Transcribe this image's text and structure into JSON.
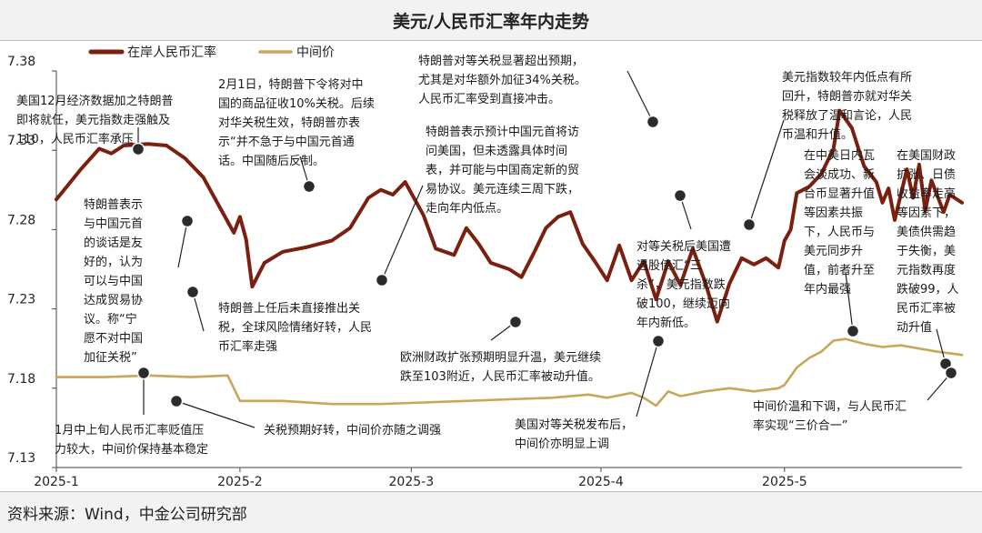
{
  "chart_data": {
    "type": "line",
    "title": "美元/人民币汇率年内走势",
    "x_ticks": [
      "2025-1",
      "2025-2",
      "2025-3",
      "2025-4",
      "2025-5"
    ],
    "xlim": [
      "2025-01-02",
      "2025-05-30"
    ],
    "y_ticks": [
      "7.13",
      "7.18",
      "7.23",
      "7.28",
      "7.33",
      "7.38"
    ],
    "ylim": [
      7.13,
      7.38
    ],
    "grid": false,
    "legend_position": "top-left",
    "series": [
      {
        "name": "在岸人民币汇率",
        "color": "#7b1f0f",
        "points": [
          [
            "2025-01-02",
            7.299
          ],
          [
            "2025-01-06",
            7.318
          ],
          [
            "2025-01-09",
            7.331
          ],
          [
            "2025-01-11",
            7.328
          ],
          [
            "2025-01-13",
            7.333
          ],
          [
            "2025-01-17",
            7.334
          ],
          [
            "2025-01-20",
            7.333
          ],
          [
            "2025-01-23",
            7.325
          ],
          [
            "2025-01-26",
            7.313
          ],
          [
            "2025-01-29",
            7.292
          ],
          [
            "2025-01-31",
            7.278
          ],
          [
            "2025-02-01",
            7.288
          ],
          [
            "2025-02-02",
            7.274
          ],
          [
            "2025-02-03",
            7.244
          ],
          [
            "2025-02-05",
            7.259
          ],
          [
            "2025-02-08",
            7.266
          ],
          [
            "2025-02-12",
            7.269
          ],
          [
            "2025-02-16",
            7.273
          ],
          [
            "2025-02-19",
            7.281
          ],
          [
            "2025-02-22",
            7.3
          ],
          [
            "2025-02-24",
            7.305
          ],
          [
            "2025-02-26",
            7.302
          ],
          [
            "2025-02-28",
            7.31
          ],
          [
            "2025-03-03",
            7.289
          ],
          [
            "2025-03-05",
            7.268
          ],
          [
            "2025-03-08",
            7.264
          ],
          [
            "2025-03-10",
            7.281
          ],
          [
            "2025-03-12",
            7.271
          ],
          [
            "2025-03-14",
            7.259
          ],
          [
            "2025-03-17",
            7.255
          ],
          [
            "2025-03-19",
            7.25
          ],
          [
            "2025-03-21",
            7.265
          ],
          [
            "2025-03-23",
            7.281
          ],
          [
            "2025-03-25",
            7.288
          ],
          [
            "2025-03-27",
            7.291
          ],
          [
            "2025-03-29",
            7.271
          ],
          [
            "2025-03-31",
            7.26
          ],
          [
            "2025-04-02",
            7.248
          ],
          [
            "2025-04-04",
            7.27
          ],
          [
            "2025-04-06",
            7.248
          ],
          [
            "2025-04-08",
            7.26
          ],
          [
            "2025-04-10",
            7.236
          ],
          [
            "2025-04-12",
            7.26
          ],
          [
            "2025-04-14",
            7.245
          ],
          [
            "2025-04-16",
            7.268
          ],
          [
            "2025-04-18",
            7.247
          ],
          [
            "2025-04-20",
            7.222
          ],
          [
            "2025-04-22",
            7.246
          ],
          [
            "2025-04-24",
            7.262
          ],
          [
            "2025-04-26",
            7.258
          ],
          [
            "2025-04-28",
            7.262
          ],
          [
            "2025-04-30",
            7.256
          ],
          [
            "2025-05-01",
            7.273
          ],
          [
            "2025-05-02",
            7.28
          ],
          [
            "2025-05-03",
            7.303
          ],
          [
            "2025-05-05",
            7.307
          ],
          [
            "2025-05-07",
            7.315
          ],
          [
            "2025-05-09",
            7.331
          ],
          [
            "2025-05-10",
            7.355
          ],
          [
            "2025-05-12",
            7.344
          ],
          [
            "2025-05-14",
            7.32
          ],
          [
            "2025-05-16",
            7.31
          ],
          [
            "2025-05-17",
            7.297
          ],
          [
            "2025-05-18",
            7.306
          ],
          [
            "2025-05-19",
            7.286
          ],
          [
            "2025-05-21",
            7.318
          ],
          [
            "2025-05-22",
            7.3
          ],
          [
            "2025-05-23",
            7.321
          ],
          [
            "2025-05-24",
            7.292
          ],
          [
            "2025-05-25",
            7.311
          ],
          [
            "2025-05-27",
            7.291
          ],
          [
            "2025-05-28",
            7.302
          ],
          [
            "2025-05-30",
            7.297
          ]
        ]
      },
      {
        "name": "中间价",
        "color": "#c9a65a",
        "points": [
          [
            "2025-01-02",
            7.187
          ],
          [
            "2025-01-10",
            7.187
          ],
          [
            "2025-01-17",
            7.188
          ],
          [
            "2025-01-24",
            7.187
          ],
          [
            "2025-01-30",
            7.188
          ],
          [
            "2025-02-01",
            7.172
          ],
          [
            "2025-02-08",
            7.172
          ],
          [
            "2025-02-16",
            7.17
          ],
          [
            "2025-02-24",
            7.17
          ],
          [
            "2025-03-03",
            7.171
          ],
          [
            "2025-03-10",
            7.172
          ],
          [
            "2025-03-17",
            7.173
          ],
          [
            "2025-03-24",
            7.174
          ],
          [
            "2025-03-30",
            7.176
          ],
          [
            "2025-04-02",
            7.174
          ],
          [
            "2025-04-06",
            7.177
          ],
          [
            "2025-04-08",
            7.174
          ],
          [
            "2025-04-10",
            7.169
          ],
          [
            "2025-04-12",
            7.178
          ],
          [
            "2025-04-14",
            7.175
          ],
          [
            "2025-04-18",
            7.178
          ],
          [
            "2025-04-22",
            7.18
          ],
          [
            "2025-04-26",
            7.178
          ],
          [
            "2025-04-30",
            7.18
          ],
          [
            "2025-05-01",
            7.182
          ],
          [
            "2025-05-03",
            7.193
          ],
          [
            "2025-05-05",
            7.199
          ],
          [
            "2025-05-07",
            7.203
          ],
          [
            "2025-05-09",
            7.21
          ],
          [
            "2025-05-11",
            7.211
          ],
          [
            "2025-05-14",
            7.208
          ],
          [
            "2025-05-17",
            7.206
          ],
          [
            "2025-05-20",
            7.207
          ],
          [
            "2025-05-23",
            7.205
          ],
          [
            "2025-05-26",
            7.203
          ],
          [
            "2025-05-30",
            7.201
          ]
        ]
      }
    ],
    "annotations": [
      {
        "lines": [
          "美国12月经济数据加之特朗普",
          "即将就任，美元指数走强触及",
          "110，人民币汇率承压"
        ]
      },
      {
        "lines": [
          "2月1日，特朗普下令将对中",
          "国的商品征收10%关税。后续",
          "对华关税生效，特朗普亦表",
          "示“并不急于与中国元首通",
          "话。中国随后反制。"
        ]
      },
      {
        "lines": [
          "特朗普对等关税显著超出预期，",
          "尤其是对华额外加征34%关税。",
          "人民币汇率受到直接冲击。"
        ]
      },
      {
        "lines": [
          "美元指数较年内低点有所",
          "回升，特朗普亦就对华关",
          "税释放了温和言论，人民",
          "币温和升值。"
        ]
      },
      {
        "lines": [
          "特朗普表示预计中国元首将访",
          "问美国，但未透露具体时间",
          "表，并可能与中国商定新的贸",
          "易协议。美元连续三周下跌，",
          "走向年内低点。"
        ]
      },
      {
        "lines": [
          "特朗普表示",
          "与中国元首",
          "的谈话是友",
          "好的，认为",
          "可以与中国",
          "达成贸易协",
          "议。称“宁",
          "愿不对中国",
          "加征关税”"
        ]
      },
      {
        "lines": [
          "在中美日内瓦",
          "会谈成功、新",
          "台币显著升值",
          "等因素共振",
          "下，人民币与",
          "美元同步升",
          "值，前者升至",
          "年内最强"
        ]
      },
      {
        "lines": [
          "在美国财政",
          "扩张、日债",
          "收益率走高",
          "等因素下，",
          "美债供需趋",
          "于失衡，美",
          "元指数再度",
          "跌破99，人",
          "民币汇率被",
          "动升值"
        ]
      },
      {
        "lines": [
          "对等关税后美国遭",
          "遇股债汇“三",
          "杀”，美元指数跌",
          "破100，继续迈向",
          "年内新低。"
        ]
      },
      {
        "lines": [
          "特朗普上任后未直接推出关",
          "税，全球风险情绪好转，人民",
          "币汇率走强"
        ]
      },
      {
        "lines": [
          "欧洲财政扩张预期明显升温，美元继续",
          "跌至103附近，人民币汇率被动升值。"
        ]
      },
      {
        "lines": [
          "1月中上旬人民币汇率贬值压",
          "力较大，中间价保持基本稳定"
        ]
      },
      {
        "lines": [
          "关税预期好转，中间价亦随之调强"
        ]
      },
      {
        "lines": [
          "美国对等关税发布后，",
          "中间价亦明显上调"
        ]
      },
      {
        "lines": [
          "中间价温和下调，与人民币汇",
          "率实现“三价合一”"
        ]
      }
    ]
  },
  "source": "资料来源：Wind，中金公司研究部"
}
